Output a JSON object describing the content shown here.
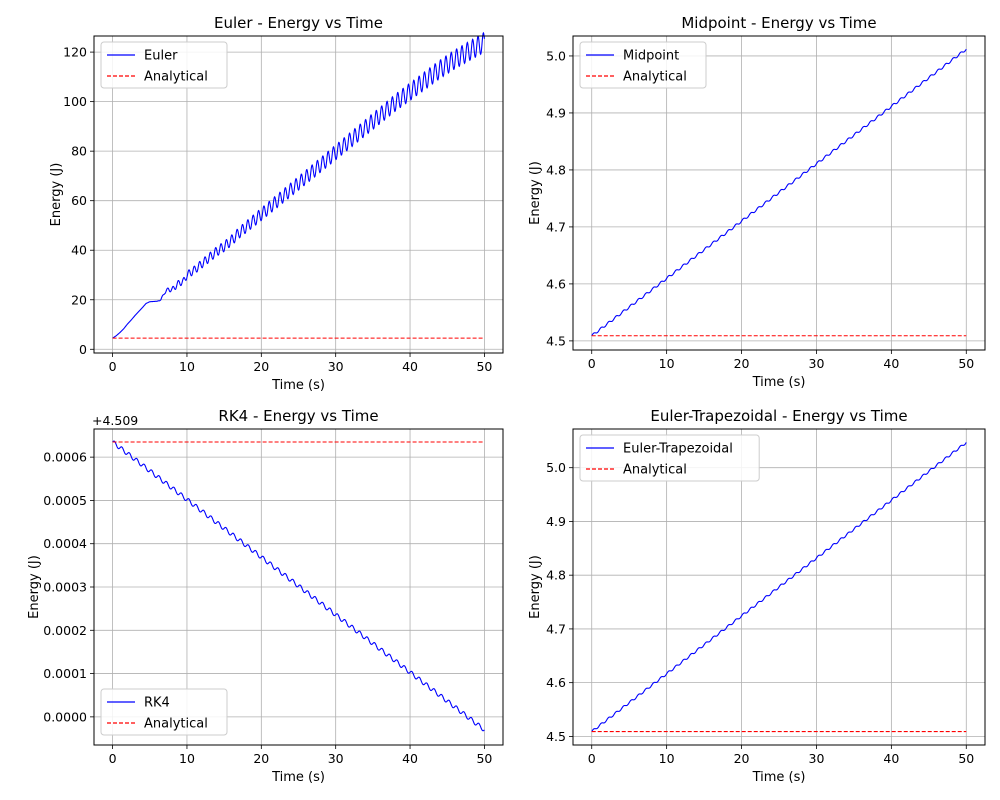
{
  "colors": {
    "numerical": "#0000ff",
    "analytical": "#ff0000",
    "grid": "#b0b0b0",
    "axes": "#000000",
    "legend_border": "#cccccc"
  },
  "chart_data": [
    {
      "type": "line",
      "title": "Euler - Energy vs Time",
      "xlabel": "Time (s)",
      "ylabel": "Energy (J)",
      "xlim": [
        -2.5,
        52.5
      ],
      "ylim": [
        -1.5,
        126.5
      ],
      "xticks": [
        0,
        10,
        20,
        30,
        40,
        50
      ],
      "yticks": [
        0,
        20,
        40,
        60,
        80,
        100,
        120
      ],
      "ytick_labels": [
        "0",
        "20",
        "40",
        "60",
        "80",
        "100",
        "120"
      ],
      "offset_text": "",
      "grid": true,
      "legend": "upper left",
      "series": [
        {
          "name": "Euler",
          "style": "solid",
          "x": [
            0,
            0.5,
            1,
            1.5,
            2,
            2.5,
            3,
            3.5,
            4,
            4.5,
            5,
            5.5,
            6,
            6.5,
            7,
            7.5,
            8,
            8.5,
            9,
            9.5,
            10,
            11,
            12,
            13,
            14,
            15,
            16,
            17,
            18,
            19,
            20,
            22,
            24,
            26,
            28,
            30,
            32,
            34,
            36,
            38,
            40,
            42,
            44,
            46,
            48,
            50
          ],
          "y": [
            4.5,
            5.5,
            6.8,
            8.3,
            10.2,
            11.8,
            13.6,
            15.2,
            16.8,
            18.5,
            19.2,
            19.3,
            19.4,
            20.0,
            23.0,
            24.2,
            24.0,
            25.5,
            27.0,
            27.2,
            30.0,
            32.0,
            34.5,
            37.0,
            39.5,
            41.5,
            44.0,
            47.0,
            49.5,
            52.0,
            54.5,
            59.5,
            64.5,
            69.5,
            74.5,
            79.5,
            84.5,
            89.5,
            94.5,
            99.5,
            104.0,
            108.5,
            113.0,
            117.0,
            120.5,
            124.0
          ],
          "oscillation_amplitude": [
            0,
            0,
            0,
            0,
            0,
            0,
            0,
            0,
            0,
            0,
            0,
            0,
            0,
            0.3,
            0.6,
            0.8,
            1.0,
            1.2,
            1.3,
            1.4,
            1.5,
            1.6,
            1.7,
            1.8,
            1.9,
            2.0,
            2.1,
            2.2,
            2.3,
            2.4,
            2.5,
            2.6,
            2.7,
            2.8,
            2.9,
            3.0,
            3.1,
            3.2,
            3.3,
            3.4,
            3.5,
            3.6,
            3.7,
            3.8,
            3.9,
            4.0
          ]
        },
        {
          "name": "Analytical",
          "style": "dashed",
          "x": [
            0,
            50
          ],
          "y": [
            4.509,
            4.509
          ]
        }
      ]
    },
    {
      "type": "line",
      "title": "Midpoint - Energy vs Time",
      "xlabel": "Time (s)",
      "ylabel": "Energy (J)",
      "xlim": [
        -2.5,
        52.5
      ],
      "ylim": [
        4.484,
        5.035
      ],
      "xticks": [
        0,
        10,
        20,
        30,
        40,
        50
      ],
      "yticks": [
        4.5,
        4.6,
        4.7,
        4.8,
        4.9,
        5.0
      ],
      "ytick_labels": [
        "4.5",
        "4.6",
        "4.7",
        "4.8",
        "4.9",
        "5.0"
      ],
      "offset_text": "",
      "grid": true,
      "legend": "upper left",
      "series": [
        {
          "name": "Midpoint",
          "style": "solid",
          "x": [
            0,
            50
          ],
          "y": [
            4.509,
            5.012
          ],
          "ripple": 0.002
        },
        {
          "name": "Analytical",
          "style": "dashed",
          "x": [
            0,
            50
          ],
          "y": [
            4.509,
            4.509
          ]
        }
      ]
    },
    {
      "type": "line",
      "title": "RK4 - Energy vs Time",
      "xlabel": "Time (s)",
      "ylabel": "Energy (J)",
      "xlim": [
        -2.5,
        52.5
      ],
      "ylim": [
        -6.5e-05,
        0.000665
      ],
      "xticks": [
        0,
        10,
        20,
        30,
        40,
        50
      ],
      "yticks": [
        0,
        0.0001,
        0.0002,
        0.0003,
        0.0004,
        0.0005,
        0.0006
      ],
      "ytick_labels": [
        "0.0000",
        "0.0001",
        "0.0002",
        "0.0003",
        "0.0004",
        "0.0005",
        "0.0006"
      ],
      "offset_text": "+4.509",
      "grid": true,
      "legend": "lower left",
      "series": [
        {
          "name": "RK4",
          "style": "solid",
          "x": [
            0,
            50
          ],
          "y": [
            0.000635,
            -3e-05
          ],
          "ripple": 5e-06
        },
        {
          "name": "Analytical",
          "style": "dashed",
          "x": [
            0,
            50
          ],
          "y": [
            0.000635,
            0.000635
          ]
        }
      ]
    },
    {
      "type": "line",
      "title": "Euler-Trapezoidal - Energy vs Time",
      "xlabel": "Time (s)",
      "ylabel": "Energy (J)",
      "xlim": [
        -2.5,
        52.5
      ],
      "ylim": [
        4.484,
        5.072
      ],
      "xticks": [
        0,
        10,
        20,
        30,
        40,
        50
      ],
      "yticks": [
        4.5,
        4.6,
        4.7,
        4.8,
        4.9,
        5.0
      ],
      "ytick_labels": [
        "4.5",
        "4.6",
        "4.7",
        "4.8",
        "4.9",
        "5.0"
      ],
      "offset_text": "",
      "grid": true,
      "legend": "upper left",
      "series": [
        {
          "name": "Euler-Trapezoidal",
          "style": "solid",
          "x": [
            0,
            50
          ],
          "y": [
            4.509,
            5.047
          ],
          "ripple": 0.002
        },
        {
          "name": "Analytical",
          "style": "dashed",
          "x": [
            0,
            50
          ],
          "y": [
            4.509,
            4.509
          ]
        }
      ]
    }
  ]
}
